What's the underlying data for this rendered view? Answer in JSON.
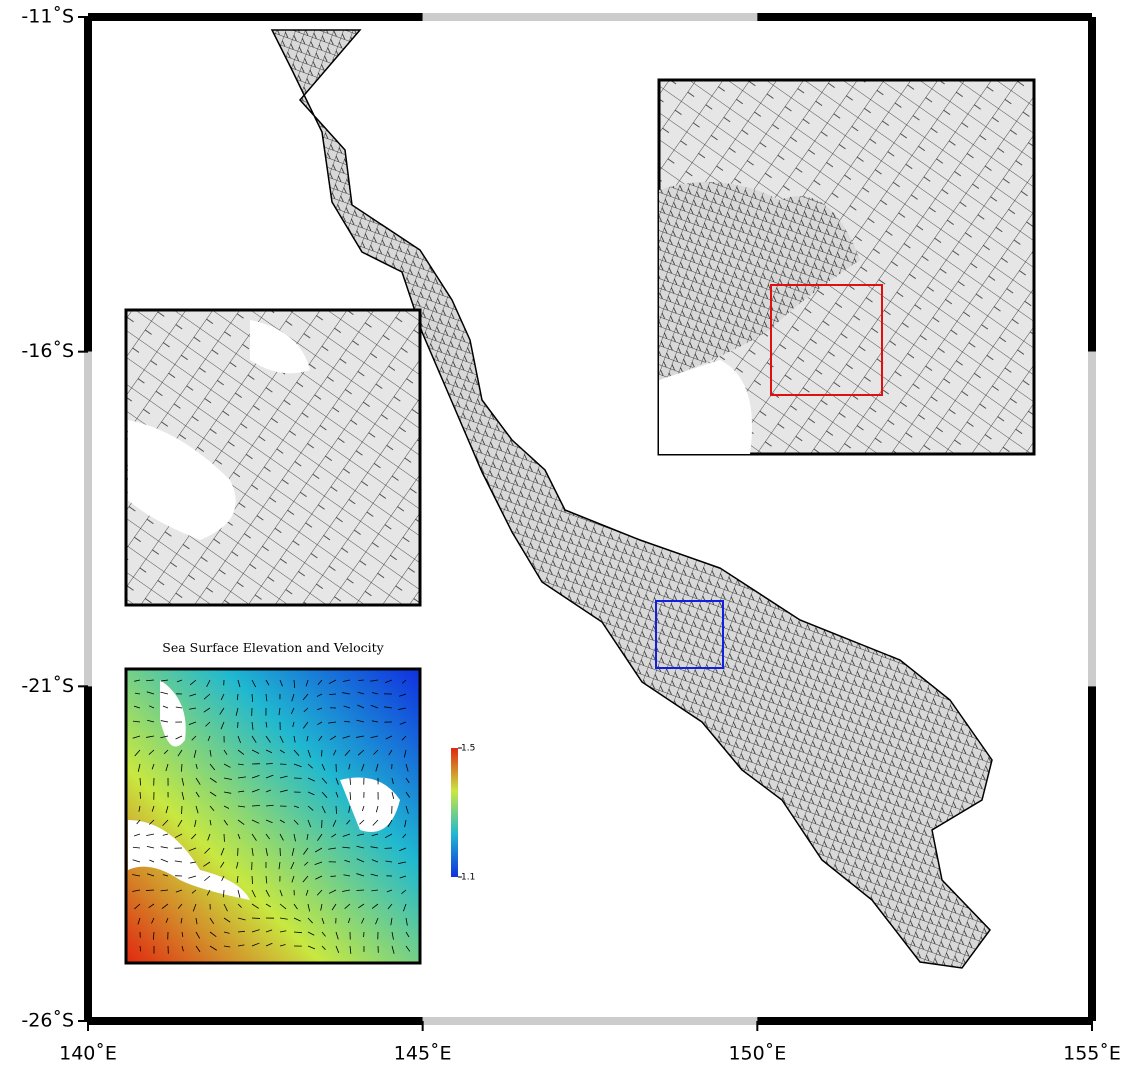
{
  "map": {
    "lonlim": [
      140,
      155
    ],
    "latlim": [
      -26,
      -11
    ],
    "lon_ticks": [
      {
        "value": 140,
        "label": "140˚E"
      },
      {
        "value": 145,
        "label": "145˚E"
      },
      {
        "value": 150,
        "label": "150˚E"
      },
      {
        "value": 155,
        "label": "155˚E"
      }
    ],
    "lat_ticks": [
      {
        "value": -11,
        "label": "-11˚S"
      },
      {
        "value": -16,
        "label": "-16˚S"
      },
      {
        "value": -21,
        "label": "-21˚S"
      },
      {
        "value": -26,
        "label": "-26˚S"
      }
    ]
  },
  "inset": {
    "title": "Sea Surface Elevation and Velocity",
    "colorbar": {
      "range": [
        1.1,
        1.5
      ],
      "ticks": [
        1.1,
        1.5
      ],
      "colormap": [
        "#1030e0",
        "#20b8d0",
        "#c8e840",
        "#e02810"
      ]
    }
  }
}
